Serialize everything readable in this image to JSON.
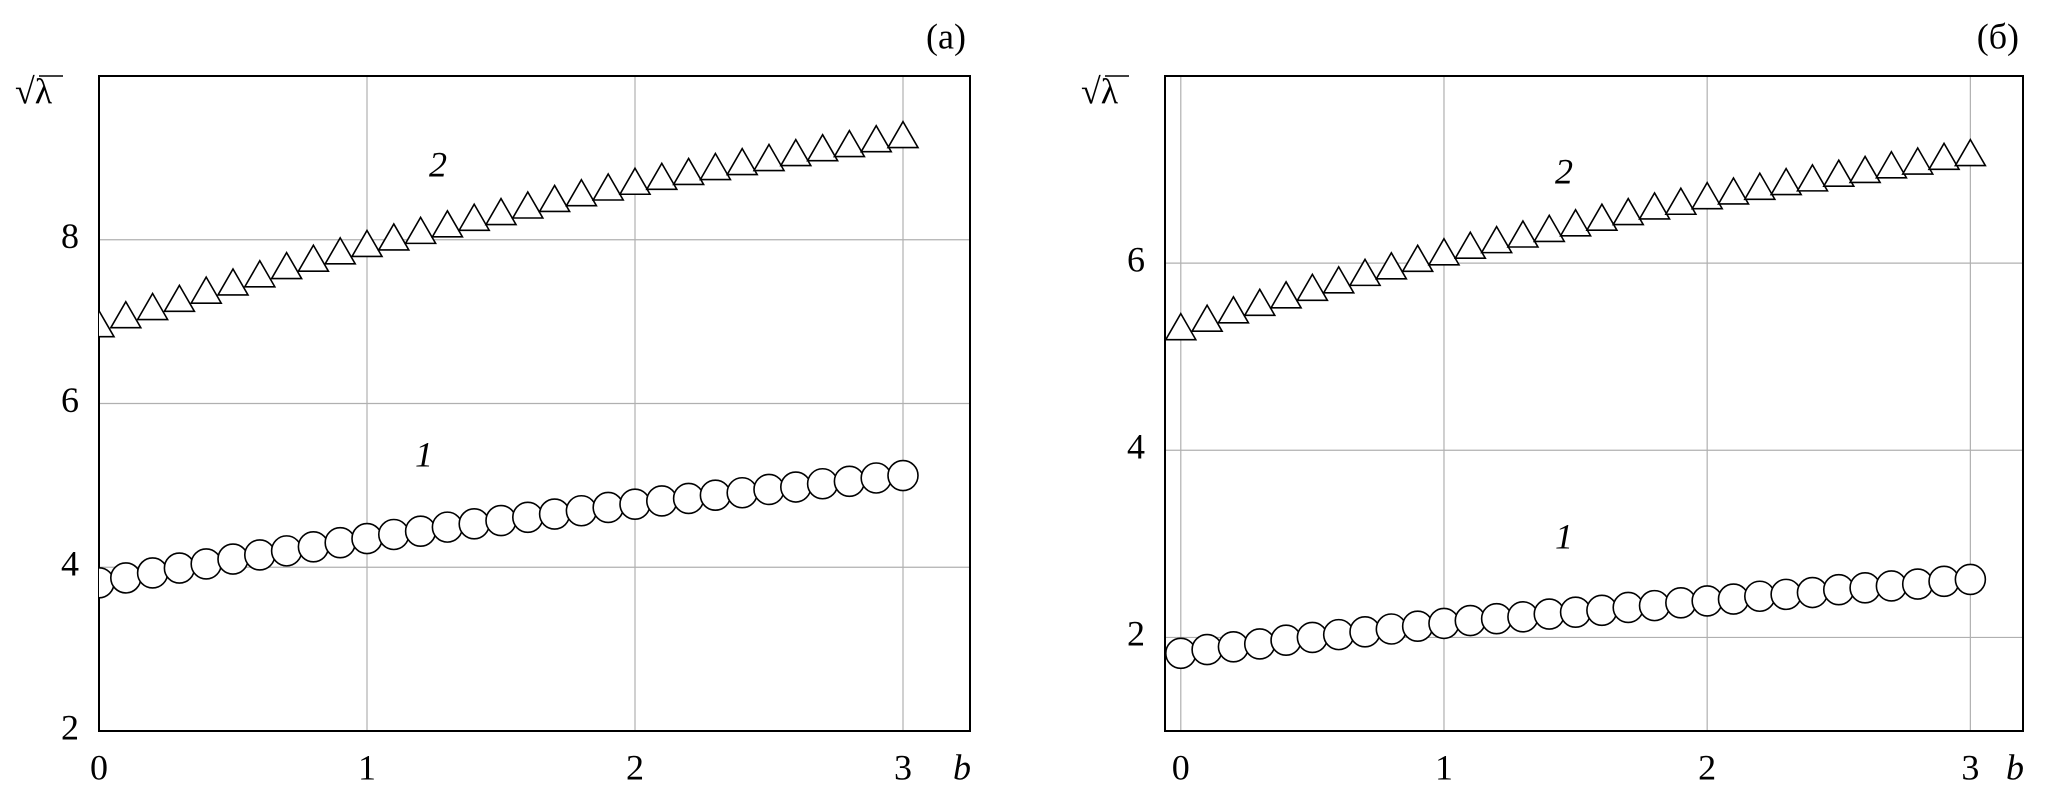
{
  "chart_data": [
    {
      "type": "scatter",
      "title": "(а)",
      "ylabel": "√λ",
      "xlabel": "b",
      "grid": true,
      "xlim": [
        0,
        3.25
      ],
      "xticks": [
        0,
        1,
        2,
        3
      ],
      "ylim": [
        2,
        10
      ],
      "yticks": [
        2,
        4,
        6,
        8
      ],
      "x": [
        0,
        0.1,
        0.2,
        0.3,
        0.4,
        0.5,
        0.6,
        0.7,
        0.8,
        0.9,
        1,
        1.1,
        1.2,
        1.3,
        1.4,
        1.5,
        1.6,
        1.7,
        1.8,
        1.9,
        2,
        2.1,
        2.2,
        2.3,
        2.4,
        2.5,
        2.6,
        2.7,
        2.8,
        2.9,
        3
      ],
      "series": [
        {
          "name": "1",
          "marker": "circle",
          "color": "#000000",
          "values": [
            3.81,
            3.87,
            3.93,
            3.99,
            4.04,
            4.1,
            4.15,
            4.2,
            4.25,
            4.3,
            4.35,
            4.4,
            4.44,
            4.49,
            4.53,
            4.57,
            4.61,
            4.65,
            4.69,
            4.73,
            4.77,
            4.81,
            4.84,
            4.88,
            4.91,
            4.95,
            4.98,
            5.02,
            5.05,
            5.09,
            5.12
          ]
        },
        {
          "name": "2",
          "marker": "triangle",
          "color": "#000000",
          "values": [
            6.95,
            7.06,
            7.16,
            7.26,
            7.36,
            7.46,
            7.56,
            7.66,
            7.75,
            7.84,
            7.93,
            8.01,
            8.09,
            8.17,
            8.25,
            8.32,
            8.4,
            8.48,
            8.55,
            8.62,
            8.69,
            8.75,
            8.81,
            8.87,
            8.93,
            8.98,
            9.04,
            9.1,
            9.15,
            9.21,
            9.26
          ]
        }
      ]
    },
    {
      "type": "scatter",
      "title": "(б)",
      "ylabel": "√λ",
      "xlabel": "b",
      "grid": true,
      "xlim": [
        -0.06,
        3.2
      ],
      "xticks": [
        0,
        1,
        2,
        3
      ],
      "ylim": [
        1,
        8
      ],
      "yticks": [
        2,
        4,
        6
      ],
      "x": [
        0,
        0.1,
        0.2,
        0.3,
        0.4,
        0.5,
        0.6,
        0.7,
        0.8,
        0.9,
        1,
        1.1,
        1.2,
        1.3,
        1.4,
        1.5,
        1.6,
        1.7,
        1.8,
        1.9,
        2,
        2.1,
        2.2,
        2.3,
        2.4,
        2.5,
        2.6,
        2.7,
        2.8,
        2.9,
        3
      ],
      "series": [
        {
          "name": "1",
          "marker": "circle",
          "color": "#000000",
          "values": [
            1.83,
            1.87,
            1.9,
            1.93,
            1.97,
            2.0,
            2.03,
            2.06,
            2.09,
            2.12,
            2.15,
            2.18,
            2.2,
            2.22,
            2.25,
            2.27,
            2.29,
            2.32,
            2.34,
            2.37,
            2.39,
            2.41,
            2.44,
            2.46,
            2.48,
            2.51,
            2.53,
            2.55,
            2.57,
            2.6,
            2.62
          ]
        },
        {
          "name": "2",
          "marker": "triangle",
          "color": "#000000",
          "values": [
            5.3,
            5.39,
            5.48,
            5.56,
            5.64,
            5.72,
            5.8,
            5.88,
            5.95,
            6.03,
            6.1,
            6.17,
            6.23,
            6.29,
            6.35,
            6.41,
            6.47,
            6.53,
            6.59,
            6.64,
            6.7,
            6.75,
            6.8,
            6.85,
            6.89,
            6.94,
            6.98,
            7.03,
            7.07,
            7.12,
            7.16
          ]
        }
      ]
    }
  ]
}
